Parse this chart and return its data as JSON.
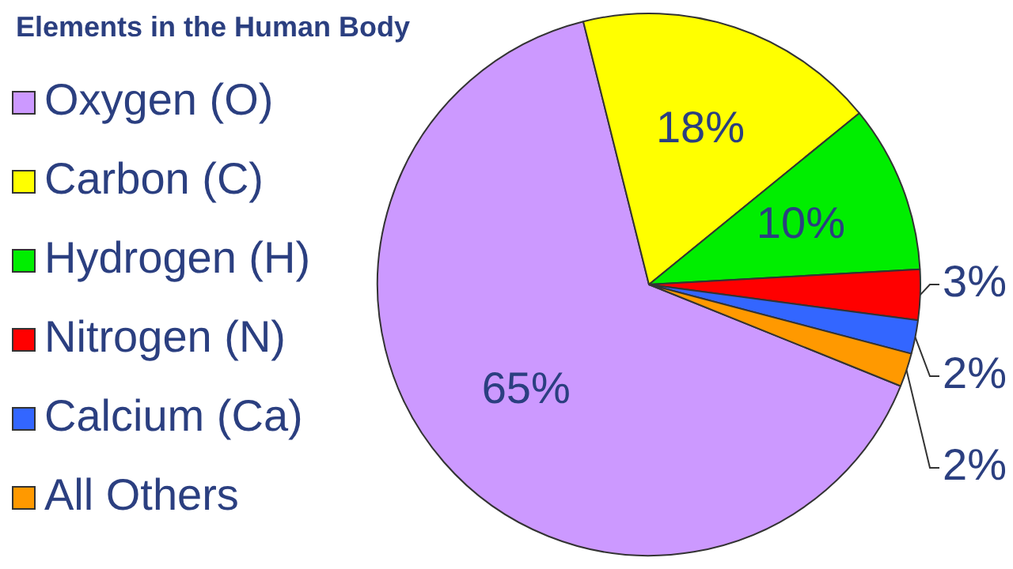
{
  "chart_data": {
    "type": "pie",
    "title": "Elements in the Human Body",
    "categories": [
      "Oxygen (O)",
      "Carbon (C)",
      "Hydrogen (H)",
      "Nitrogen (N)",
      "Calcium (Ca)",
      "All Others"
    ],
    "values": [
      65,
      18,
      10,
      3,
      2,
      2
    ],
    "colors": [
      "#cc99ff",
      "#ffff00",
      "#00ee00",
      "#ff0000",
      "#3366ff",
      "#ff9900"
    ],
    "value_labels": [
      "65%",
      "18%",
      "10%",
      "3%",
      "2%",
      "2%"
    ],
    "legend": "left"
  }
}
